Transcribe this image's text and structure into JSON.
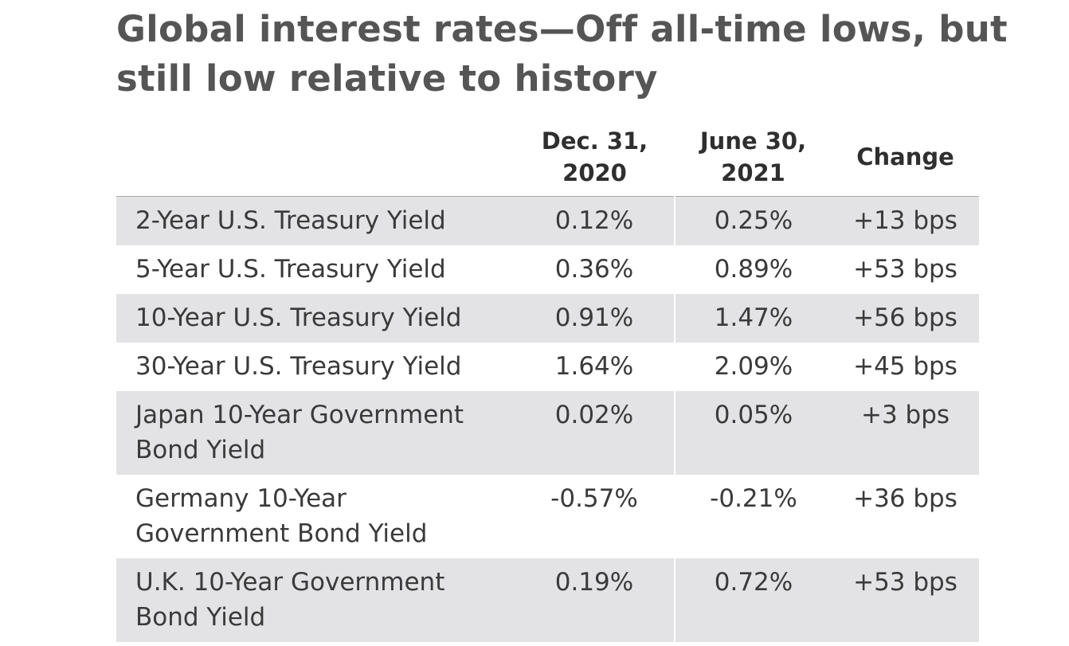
{
  "chart_data": {
    "type": "table",
    "title": "Global interest rates—Off all-time lows, but still low relative to history",
    "columns": [
      "",
      "Dec. 31, 2020",
      "June 30, 2021",
      "Change"
    ],
    "rows": [
      {
        "label": "2-Year U.S. Treasury Yield",
        "dec_2020": "0.12%",
        "jun_2021": "0.25%",
        "change": "+13 bps"
      },
      {
        "label": "5-Year U.S. Treasury Yield",
        "dec_2020": "0.36%",
        "jun_2021": "0.89%",
        "change": "+53 bps"
      },
      {
        "label": "10-Year U.S. Treasury Yield",
        "dec_2020": "0.91%",
        "jun_2021": "1.47%",
        "change": "+56 bps"
      },
      {
        "label": "30-Year U.S. Treasury Yield",
        "dec_2020": "1.64%",
        "jun_2021": "2.09%",
        "change": "+45 bps"
      },
      {
        "label": "Japan 10-Year Government Bond Yield",
        "dec_2020": "0.02%",
        "jun_2021": "0.05%",
        "change": "+3 bps"
      },
      {
        "label": "Germany 10-Year Government Bond Yield",
        "dec_2020": "-0.57%",
        "jun_2021": "-0.21%",
        "change": "+36 bps"
      },
      {
        "label": "U.K. 10-Year Government Bond Yield",
        "dec_2020": "0.19%",
        "jun_2021": "0.72%",
        "change": "+53 bps"
      }
    ],
    "shade_color": "#e3e3e5",
    "title_color": "#555555"
  }
}
